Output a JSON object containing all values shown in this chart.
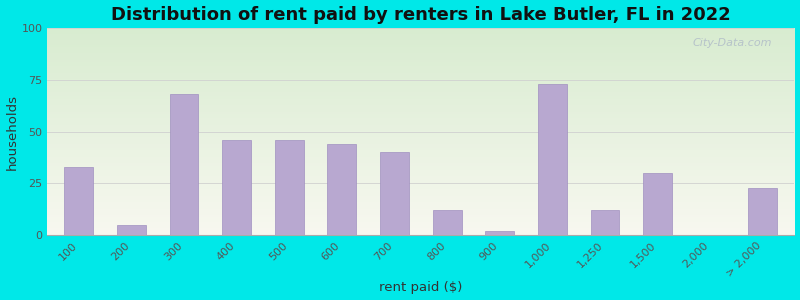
{
  "title": "Distribution of rent paid by renters in Lake Butler, FL in 2022",
  "xlabel": "rent paid ($)",
  "ylabel": "households",
  "categories": [
    "100",
    "200",
    "300",
    "400",
    "500",
    "600",
    "700",
    "800",
    "900",
    "1,000",
    "1,250",
    "1,500",
    "2,000",
    "> 2,000"
  ],
  "values": [
    33,
    5,
    68,
    46,
    46,
    44,
    40,
    12,
    2,
    73,
    12,
    30,
    0,
    23
  ],
  "bar_color": "#b8a8d0",
  "bar_edge_color": "#a090c0",
  "ylim": [
    0,
    100
  ],
  "yticks": [
    0,
    25,
    50,
    75,
    100
  ],
  "bg_outer": "#00e8e8",
  "bg_plot_top_color": "#d8ecd0",
  "bg_plot_bottom_color": "#f8f8f0",
  "title_fontsize": 13,
  "axis_label_fontsize": 9.5,
  "tick_fontsize": 8,
  "watermark_text": "City-Data.com",
  "watermark_color": "#b0bcc8",
  "grid_color": "#d0d0d0",
  "bar_width": 0.55
}
